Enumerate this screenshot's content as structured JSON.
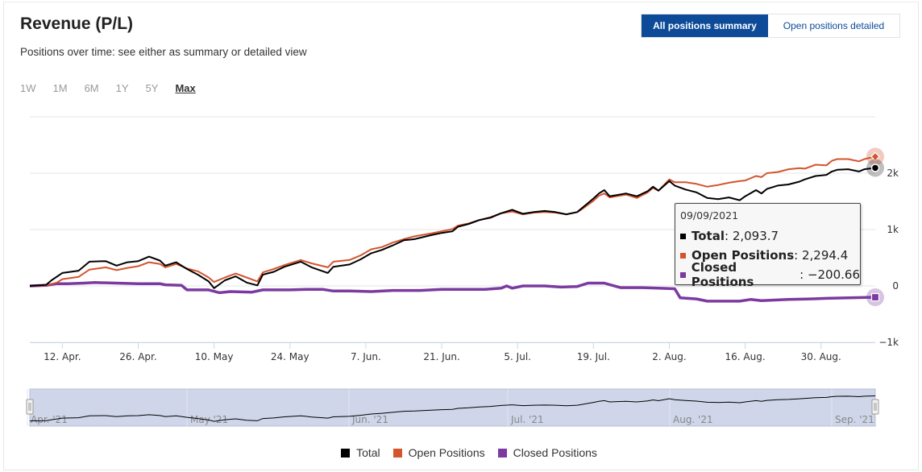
{
  "header": {
    "title": "Revenue (P/L)",
    "subtitle": "Positions over time: see either as summary or detailed view"
  },
  "view_toggle": {
    "summary_label": "All positions summary",
    "detailed_label": "Open positions detailed"
  },
  "range_selector": {
    "buttons": [
      "1W",
      "1M",
      "6M",
      "1Y",
      "5Y",
      "Max"
    ],
    "active": "Max"
  },
  "tooltip": {
    "date": "09/09/2021",
    "rows": [
      {
        "name": "Total",
        "value": "2,093.7"
      },
      {
        "name": "Open Positions",
        "value": "2,294.4"
      },
      {
        "name": "Closed Positions",
        "value": "−200.66"
      }
    ]
  },
  "navigator": {
    "labels": [
      "Apr. '21",
      "May '21",
      "Jun. '21",
      "Jul. '21",
      "Aug. '21",
      "Sep. '21"
    ]
  },
  "legend": {
    "items": [
      {
        "name": "Total",
        "color": "#000000"
      },
      {
        "name": "Open Positions",
        "color": "#d4542e"
      },
      {
        "name": "Closed Positions",
        "color": "#7b3aa0"
      }
    ]
  },
  "chart_data": {
    "type": "line",
    "x_type": "date",
    "x_start": "2021-04-06",
    "x_end": "2021-09-09",
    "x_ticks": [
      {
        "date": "2021-04-12",
        "label": "12. Apr."
      },
      {
        "date": "2021-04-26",
        "label": "26. Apr."
      },
      {
        "date": "2021-05-10",
        "label": "10. May"
      },
      {
        "date": "2021-05-24",
        "label": "24. May"
      },
      {
        "date": "2021-06-07",
        "label": "7. Jun."
      },
      {
        "date": "2021-06-21",
        "label": "21. Jun."
      },
      {
        "date": "2021-07-05",
        "label": "5. Jul."
      },
      {
        "date": "2021-07-19",
        "label": "19. Jul."
      },
      {
        "date": "2021-08-02",
        "label": "2. Aug."
      },
      {
        "date": "2021-08-16",
        "label": "16. Aug."
      },
      {
        "date": "2021-08-30",
        "label": "30. Aug."
      }
    ],
    "y_ticks": [
      {
        "value": -1000,
        "label": "−1k"
      },
      {
        "value": 0,
        "label": "0"
      },
      {
        "value": 1000,
        "label": "1k"
      },
      {
        "value": 2000,
        "label": "2k"
      }
    ],
    "ylim": [
      -1000,
      3000
    ],
    "grid": true,
    "legend_position": "bottom",
    "series": [
      {
        "name": "Total",
        "color": "#000000",
        "points": [
          [
            "2021-04-06",
            0
          ],
          [
            "2021-04-09",
            20
          ],
          [
            "2021-04-10",
            100
          ],
          [
            "2021-04-12",
            230
          ],
          [
            "2021-04-15",
            270
          ],
          [
            "2021-04-17",
            430
          ],
          [
            "2021-04-20",
            440
          ],
          [
            "2021-04-22",
            360
          ],
          [
            "2021-04-24",
            420
          ],
          [
            "2021-04-26",
            440
          ],
          [
            "2021-04-28",
            520
          ],
          [
            "2021-04-30",
            450
          ],
          [
            "2021-05-01",
            360
          ],
          [
            "2021-05-03",
            420
          ],
          [
            "2021-05-05",
            300
          ],
          [
            "2021-05-07",
            200
          ],
          [
            "2021-05-09",
            80
          ],
          [
            "2021-05-10",
            -40
          ],
          [
            "2021-05-12",
            100
          ],
          [
            "2021-05-14",
            170
          ],
          [
            "2021-05-16",
            60
          ],
          [
            "2021-05-18",
            10
          ],
          [
            "2021-05-19",
            200
          ],
          [
            "2021-05-21",
            250
          ],
          [
            "2021-05-23",
            340
          ],
          [
            "2021-05-26",
            430
          ],
          [
            "2021-05-28",
            330
          ],
          [
            "2021-05-31",
            230
          ],
          [
            "2021-06-01",
            340
          ],
          [
            "2021-06-04",
            380
          ],
          [
            "2021-06-06",
            470
          ],
          [
            "2021-06-08",
            580
          ],
          [
            "2021-06-10",
            640
          ],
          [
            "2021-06-12",
            720
          ],
          [
            "2021-06-14",
            810
          ],
          [
            "2021-06-16",
            830
          ],
          [
            "2021-06-19",
            900
          ],
          [
            "2021-06-21",
            940
          ],
          [
            "2021-06-23",
            970
          ],
          [
            "2021-06-24",
            1050
          ],
          [
            "2021-06-26",
            1100
          ],
          [
            "2021-06-28",
            1170
          ],
          [
            "2021-06-30",
            1210
          ],
          [
            "2021-07-02",
            1290
          ],
          [
            "2021-07-04",
            1350
          ],
          [
            "2021-07-06",
            1280
          ],
          [
            "2021-07-08",
            1310
          ],
          [
            "2021-07-10",
            1330
          ],
          [
            "2021-07-12",
            1310
          ],
          [
            "2021-07-14",
            1270
          ],
          [
            "2021-07-16",
            1310
          ],
          [
            "2021-07-17",
            1390
          ],
          [
            "2021-07-19",
            1550
          ],
          [
            "2021-07-20",
            1640
          ],
          [
            "2021-07-21",
            1700
          ],
          [
            "2021-07-22",
            1590
          ],
          [
            "2021-07-25",
            1640
          ],
          [
            "2021-07-27",
            1590
          ],
          [
            "2021-07-29",
            1680
          ],
          [
            "2021-07-30",
            1760
          ],
          [
            "2021-07-31",
            1690
          ],
          [
            "2021-08-02",
            1860
          ],
          [
            "2021-08-03",
            1780
          ],
          [
            "2021-08-05",
            1710
          ],
          [
            "2021-08-07",
            1660
          ],
          [
            "2021-08-09",
            1560
          ],
          [
            "2021-08-11",
            1540
          ],
          [
            "2021-08-13",
            1570
          ],
          [
            "2021-08-15",
            1520
          ],
          [
            "2021-08-16",
            1590
          ],
          [
            "2021-08-18",
            1700
          ],
          [
            "2021-08-19",
            1640
          ],
          [
            "2021-08-20",
            1720
          ],
          [
            "2021-08-22",
            1780
          ],
          [
            "2021-08-24",
            1800
          ],
          [
            "2021-08-26",
            1850
          ],
          [
            "2021-08-27",
            1890
          ],
          [
            "2021-08-29",
            1950
          ],
          [
            "2021-08-31",
            1970
          ],
          [
            "2021-09-01",
            2030
          ],
          [
            "2021-09-02",
            2060
          ],
          [
            "2021-09-04",
            2070
          ],
          [
            "2021-09-06",
            2030
          ],
          [
            "2021-09-07",
            2070
          ],
          [
            "2021-09-09",
            2093.7
          ]
        ]
      },
      {
        "name": "Open Positions",
        "color": "#d4542e",
        "points": [
          [
            "2021-04-06",
            0
          ],
          [
            "2021-04-09",
            10
          ],
          [
            "2021-04-11",
            60
          ],
          [
            "2021-04-12",
            120
          ],
          [
            "2021-04-15",
            160
          ],
          [
            "2021-04-17",
            290
          ],
          [
            "2021-04-20",
            330
          ],
          [
            "2021-04-22",
            280
          ],
          [
            "2021-04-24",
            320
          ],
          [
            "2021-04-26",
            350
          ],
          [
            "2021-04-28",
            420
          ],
          [
            "2021-04-30",
            390
          ],
          [
            "2021-05-01",
            330
          ],
          [
            "2021-05-03",
            390
          ],
          [
            "2021-05-05",
            310
          ],
          [
            "2021-05-07",
            260
          ],
          [
            "2021-05-09",
            150
          ],
          [
            "2021-05-10",
            70
          ],
          [
            "2021-05-12",
            150
          ],
          [
            "2021-05-14",
            220
          ],
          [
            "2021-05-16",
            150
          ],
          [
            "2021-05-18",
            80
          ],
          [
            "2021-05-19",
            240
          ],
          [
            "2021-05-21",
            300
          ],
          [
            "2021-05-23",
            370
          ],
          [
            "2021-05-26",
            460
          ],
          [
            "2021-05-28",
            400
          ],
          [
            "2021-05-31",
            330
          ],
          [
            "2021-06-01",
            430
          ],
          [
            "2021-06-04",
            460
          ],
          [
            "2021-06-06",
            540
          ],
          [
            "2021-06-08",
            650
          ],
          [
            "2021-06-10",
            690
          ],
          [
            "2021-06-12",
            770
          ],
          [
            "2021-06-14",
            830
          ],
          [
            "2021-06-16",
            880
          ],
          [
            "2021-06-19",
            930
          ],
          [
            "2021-06-21",
            970
          ],
          [
            "2021-06-23",
            1010
          ],
          [
            "2021-06-24",
            1070
          ],
          [
            "2021-06-26",
            1110
          ],
          [
            "2021-06-28",
            1170
          ],
          [
            "2021-06-30",
            1220
          ],
          [
            "2021-07-02",
            1290
          ],
          [
            "2021-07-04",
            1320
          ],
          [
            "2021-07-06",
            1270
          ],
          [
            "2021-07-08",
            1300
          ],
          [
            "2021-07-10",
            1310
          ],
          [
            "2021-07-12",
            1300
          ],
          [
            "2021-07-14",
            1270
          ],
          [
            "2021-07-16",
            1310
          ],
          [
            "2021-07-17",
            1370
          ],
          [
            "2021-07-19",
            1510
          ],
          [
            "2021-07-20",
            1600
          ],
          [
            "2021-07-21",
            1640
          ],
          [
            "2021-07-22",
            1570
          ],
          [
            "2021-07-25",
            1620
          ],
          [
            "2021-07-27",
            1560
          ],
          [
            "2021-07-29",
            1660
          ],
          [
            "2021-07-30",
            1740
          ],
          [
            "2021-07-31",
            1690
          ],
          [
            "2021-08-02",
            1890
          ],
          [
            "2021-08-03",
            1840
          ],
          [
            "2021-08-05",
            1840
          ],
          [
            "2021-08-07",
            1810
          ],
          [
            "2021-08-09",
            1760
          ],
          [
            "2021-08-11",
            1790
          ],
          [
            "2021-08-13",
            1830
          ],
          [
            "2021-08-15",
            1860
          ],
          [
            "2021-08-16",
            1870
          ],
          [
            "2021-08-18",
            1950
          ],
          [
            "2021-08-19",
            1930
          ],
          [
            "2021-08-20",
            2000
          ],
          [
            "2021-08-22",
            2020
          ],
          [
            "2021-08-24",
            2070
          ],
          [
            "2021-08-26",
            2090
          ],
          [
            "2021-08-27",
            2080
          ],
          [
            "2021-08-29",
            2150
          ],
          [
            "2021-08-31",
            2140
          ],
          [
            "2021-09-01",
            2220
          ],
          [
            "2021-09-02",
            2250
          ],
          [
            "2021-09-04",
            2250
          ],
          [
            "2021-09-06",
            2210
          ],
          [
            "2021-09-07",
            2250
          ],
          [
            "2021-09-09",
            2294.4
          ]
        ]
      },
      {
        "name": "Closed Positions",
        "color": "#7b3aa0",
        "points": [
          [
            "2021-04-06",
            0
          ],
          [
            "2021-04-09",
            10
          ],
          [
            "2021-04-11",
            40
          ],
          [
            "2021-04-13",
            40
          ],
          [
            "2021-04-16",
            50
          ],
          [
            "2021-04-18",
            60
          ],
          [
            "2021-04-22",
            50
          ],
          [
            "2021-04-26",
            40
          ],
          [
            "2021-04-30",
            40
          ],
          [
            "2021-05-01",
            20
          ],
          [
            "2021-05-04",
            10
          ],
          [
            "2021-05-05",
            -70
          ],
          [
            "2021-05-09",
            -70
          ],
          [
            "2021-05-11",
            -120
          ],
          [
            "2021-05-13",
            -100
          ],
          [
            "2021-05-17",
            -110
          ],
          [
            "2021-05-19",
            -70
          ],
          [
            "2021-05-24",
            -70
          ],
          [
            "2021-05-27",
            -60
          ],
          [
            "2021-05-30",
            -60
          ],
          [
            "2021-06-01",
            -90
          ],
          [
            "2021-06-04",
            -90
          ],
          [
            "2021-06-08",
            -100
          ],
          [
            "2021-06-12",
            -80
          ],
          [
            "2021-06-17",
            -80
          ],
          [
            "2021-06-21",
            -60
          ],
          [
            "2021-06-25",
            -60
          ],
          [
            "2021-06-29",
            -60
          ],
          [
            "2021-07-02",
            -40
          ],
          [
            "2021-07-03",
            0
          ],
          [
            "2021-07-04",
            -40
          ],
          [
            "2021-07-06",
            0
          ],
          [
            "2021-07-10",
            0
          ],
          [
            "2021-07-13",
            -20
          ],
          [
            "2021-07-16",
            -10
          ],
          [
            "2021-07-18",
            50
          ],
          [
            "2021-07-21",
            50
          ],
          [
            "2021-07-24",
            -30
          ],
          [
            "2021-07-28",
            -30
          ],
          [
            "2021-07-31",
            -40
          ],
          [
            "2021-08-03",
            -50
          ],
          [
            "2021-08-04",
            -210
          ],
          [
            "2021-08-07",
            -230
          ],
          [
            "2021-08-09",
            -270
          ],
          [
            "2021-08-15",
            -270
          ],
          [
            "2021-08-17",
            -240
          ],
          [
            "2021-08-19",
            -260
          ],
          [
            "2021-08-24",
            -240
          ],
          [
            "2021-08-28",
            -230
          ],
          [
            "2021-08-31",
            -220
          ],
          [
            "2021-09-09",
            -200.66
          ]
        ]
      }
    ]
  }
}
